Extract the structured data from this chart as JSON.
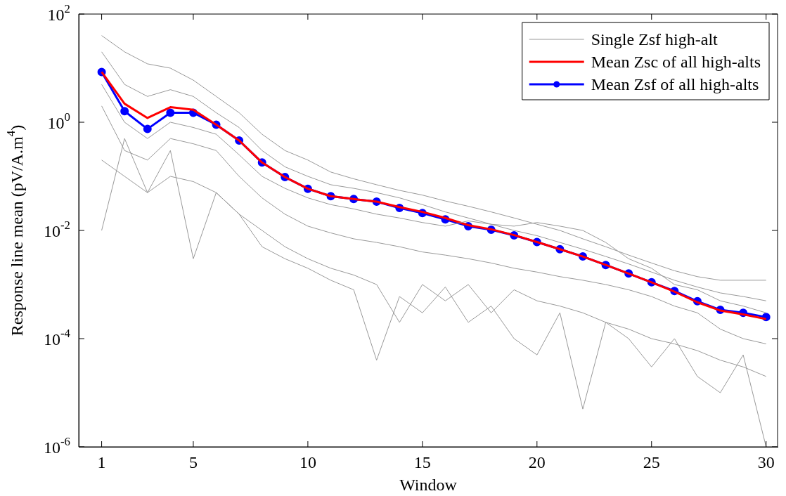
{
  "chart_data": {
    "type": "line",
    "xlabel": "Window",
    "ylabel": "Response line mean (pV/A.m$^{4}$)",
    "log": "y",
    "legend": "top right",
    "grid": false,
    "x": [
      1,
      2,
      3,
      4,
      5,
      6,
      7,
      8,
      9,
      10,
      11,
      12,
      13,
      14,
      15,
      16,
      17,
      18,
      19,
      20,
      21,
      22,
      23,
      24,
      25,
      26,
      27,
      28,
      29,
      30
    ],
    "xlim": [
      0,
      30.5
    ],
    "xticks": [
      1,
      5,
      10,
      15,
      20,
      25,
      30
    ],
    "ylim": [
      1e-06,
      100
    ],
    "yticks": [
      {
        "value": 1e-06,
        "label": "10$^{-6}$"
      },
      {
        "value": 0.0001,
        "label": "10$^{-4}$"
      },
      {
        "value": 0.01,
        "label": "10$^{-2}$"
      },
      {
        "value": 1,
        "label": "10$^{0}$"
      },
      {
        "value": 100,
        "label": "10$^{2}$"
      }
    ],
    "series": [
      {
        "name": "Single Zsf high-alt",
        "color": "#999999",
        "marker": "none",
        "values": [
          40,
          20,
          12,
          10,
          6,
          3,
          1.5,
          0.6,
          0.3,
          0.2,
          0.12,
          0.09,
          0.07,
          0.055,
          0.045,
          0.035,
          0.028,
          0.022,
          0.017,
          0.013,
          0.01,
          0.007,
          0.005,
          0.0035,
          0.0025,
          0.0018,
          0.0014,
          0.0012,
          0.0012,
          0.0012
        ]
      },
      {
        "color": "#999999",
        "marker": "none",
        "values": [
          0.01,
          0.5,
          0.05,
          0.3,
          0.003,
          0.05,
          0.02,
          0.005,
          0.003,
          0.002,
          0.0012,
          0.0008,
          4e-05,
          0.0006,
          0.0003,
          0.0009,
          0.0002,
          0.0004,
          0.0001,
          5e-05,
          0.0003,
          5e-06,
          0.0002,
          0.0001,
          3e-05,
          0.0001,
          2e-05,
          1e-05,
          5e-05,
          1e-06
        ]
      },
      {
        "color": "#999999",
        "marker": "none",
        "values": [
          20,
          5,
          3,
          4,
          3,
          1.5,
          0.8,
          0.3,
          0.15,
          0.1,
          0.07,
          0.06,
          0.05,
          0.04,
          0.03,
          0.022,
          0.017,
          0.013,
          0.01,
          0.008,
          0.006,
          0.0045,
          0.0033,
          0.0024,
          0.0017,
          0.0012,
          0.0009,
          0.0007,
          0.0006,
          0.0005
        ]
      },
      {
        "color": "#999999",
        "marker": "none",
        "values": [
          2,
          0.3,
          0.2,
          0.5,
          0.4,
          0.3,
          0.1,
          0.04,
          0.02,
          0.012,
          0.009,
          0.007,
          0.006,
          0.005,
          0.004,
          0.0035,
          0.003,
          0.0025,
          0.002,
          0.0017,
          0.0014,
          0.0012,
          0.001,
          0.0008,
          0.0006,
          0.0004,
          0.0003,
          0.00015,
          0.0001,
          8e-05
        ]
      },
      {
        "color": "#999999",
        "marker": "none",
        "values": [
          5,
          1,
          0.5,
          1,
          0.8,
          0.6,
          0.25,
          0.1,
          0.06,
          0.04,
          0.03,
          0.025,
          0.02,
          0.017,
          0.014,
          0.012,
          0.015,
          0.013,
          0.012,
          0.014,
          0.012,
          0.01,
          0.006,
          0.003,
          0.002,
          0.001,
          0.0008,
          0.0005,
          0.0004,
          0.0003
        ]
      },
      {
        "color": "#999999",
        "marker": "none",
        "values": [
          0.2,
          0.1,
          0.05,
          0.1,
          0.08,
          0.05,
          0.02,
          0.01,
          0.005,
          0.003,
          0.002,
          0.0015,
          0.001,
          0.0002,
          0.001,
          0.0005,
          0.001,
          0.0003,
          0.0008,
          0.0005,
          0.0004,
          0.0003,
          0.0002,
          0.00015,
          0.0001,
          8e-05,
          6e-05,
          4e-05,
          3e-05,
          2e-05
        ]
      },
      {
        "name": "Mean Zsc of all high-alts",
        "color": "#ff0000",
        "marker": "none",
        "values": [
          8.5,
          2.2,
          1.2,
          1.9,
          1.7,
          0.9,
          0.46,
          0.18,
          0.097,
          0.059,
          0.043,
          0.038,
          0.034,
          0.027,
          0.022,
          0.017,
          0.0125,
          0.0105,
          0.0082,
          0.0061,
          0.0045,
          0.0033,
          0.0023,
          0.0016,
          0.0011,
          0.00074,
          0.00047,
          0.00033,
          0.00028,
          0.00023
        ]
      },
      {
        "name": "Mean Zsf of all high-alts",
        "color": "#0000ff",
        "marker": "circle",
        "values": [
          8.5,
          1.6,
          0.75,
          1.5,
          1.5,
          0.9,
          0.46,
          0.18,
          0.097,
          0.059,
          0.043,
          0.038,
          0.034,
          0.026,
          0.021,
          0.016,
          0.012,
          0.0103,
          0.0081,
          0.0061,
          0.0045,
          0.0033,
          0.0023,
          0.0016,
          0.0011,
          0.00076,
          0.00049,
          0.00034,
          0.0003,
          0.00025
        ]
      }
    ]
  }
}
